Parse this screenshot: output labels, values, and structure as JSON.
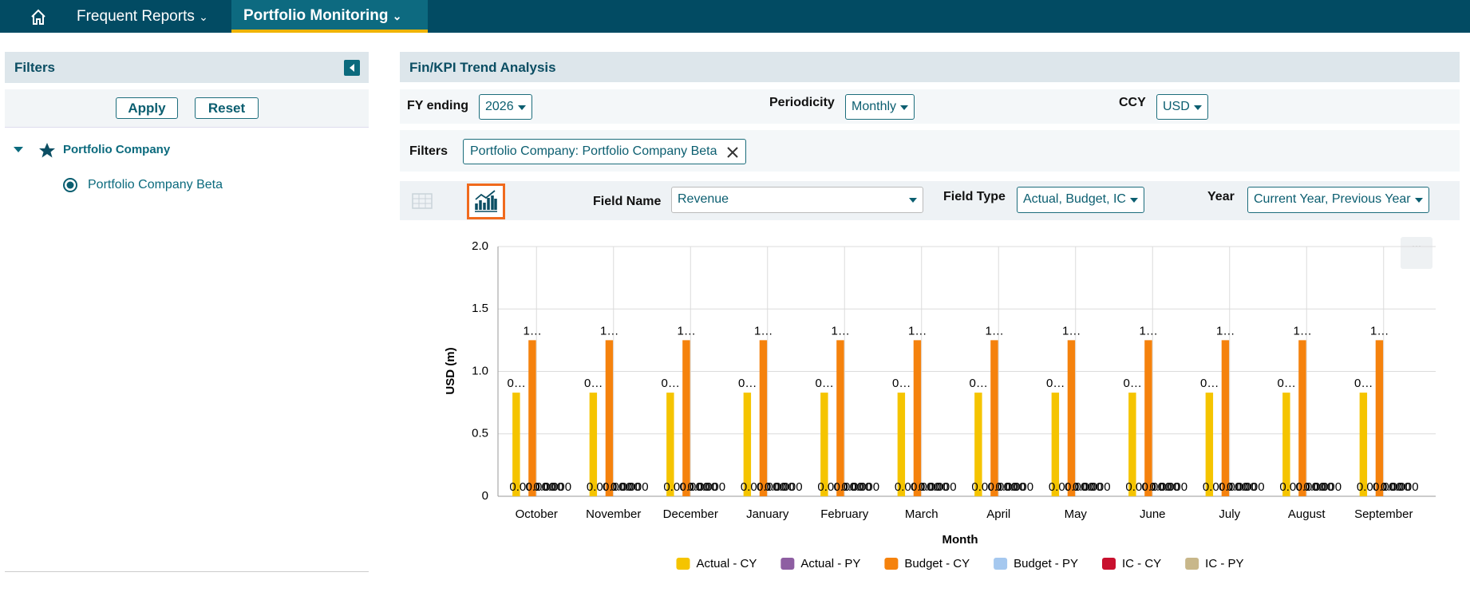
{
  "nav": {
    "items": [
      "Frequent Reports",
      "Portfolio Monitoring"
    ]
  },
  "filters_panel": {
    "title": "Filters",
    "buttons": [
      "Apply",
      "Reset"
    ],
    "tree": {
      "group": "Portfolio Company",
      "items": [
        "Portfolio Company Beta"
      ]
    }
  },
  "main": {
    "title": "Fin/KPI Trend Analysis",
    "controls": [
      {
        "label": "FY ending",
        "value": "2026"
      },
      {
        "label": "Periodicity",
        "value": "Monthly"
      },
      {
        "label": "CCY",
        "value": "USD"
      }
    ],
    "filters_label": "Filters",
    "filter_chip": "Portfolio Company: Portfolio Company Beta",
    "fields": [
      {
        "label": "Field Name",
        "value": "Revenue"
      },
      {
        "label": "Field Type",
        "value": "Actual, Budget, IC"
      },
      {
        "label": "Year",
        "value": "Current Year, Previous Year"
      }
    ]
  },
  "chart_data": {
    "type": "bar",
    "ylabel": "USD (m)",
    "xlabel": "Month",
    "categories": [
      "October",
      "November",
      "December",
      "January",
      "February",
      "March",
      "April",
      "May",
      "June",
      "July",
      "August",
      "September"
    ],
    "series": [
      {
        "name": "Actual - CY",
        "color": "#f5c400",
        "values": [
          0.83,
          0.83,
          0.83,
          0.83,
          0.83,
          0.83,
          0.83,
          0.83,
          0.83,
          0.83,
          0.83,
          0.83
        ],
        "value_labels": [
          "0…",
          "0…",
          "0…",
          "0…",
          "0…",
          "0…",
          "0…",
          "0…",
          "0…",
          "0…",
          "0…",
          "0…"
        ]
      },
      {
        "name": "Actual - PY",
        "color": "#8e5ea2",
        "values": [
          0,
          0,
          0,
          0,
          0,
          0,
          0,
          0,
          0,
          0,
          0,
          0
        ],
        "value_labels": [
          "0.000",
          "0.000",
          "0.000",
          "0.000",
          "0.000",
          "0.000",
          "0.000",
          "0.000",
          "0.000",
          "0.000",
          "0.000",
          "0.000"
        ]
      },
      {
        "name": "Budget - CY",
        "color": "#f5820d",
        "values": [
          1.25,
          1.25,
          1.25,
          1.25,
          1.25,
          1.25,
          1.25,
          1.25,
          1.25,
          1.25,
          1.25,
          1.25
        ],
        "value_labels": [
          "1…",
          "1…",
          "1…",
          "1…",
          "1…",
          "1…",
          "1…",
          "1…",
          "1…",
          "1…",
          "1…",
          "1…"
        ]
      },
      {
        "name": "Budget - PY",
        "color": "#a5c8ef",
        "values": [
          0,
          0,
          0,
          0,
          0,
          0,
          0,
          0,
          0,
          0,
          0,
          0
        ],
        "value_labels": [
          "0.000",
          "0.000",
          "0.000",
          "0.000",
          "0.000",
          "0.000",
          "0.000",
          "0.000",
          "0.000",
          "0.000",
          "0.000",
          "0.000"
        ]
      },
      {
        "name": "IC - CY",
        "color": "#c8102e",
        "values": [
          0,
          0,
          0,
          0,
          0,
          0,
          0,
          0,
          0,
          0,
          0,
          0
        ],
        "value_labels": [
          "0.000",
          "0.000",
          "0.000",
          "0.000",
          "0.000",
          "0.000",
          "0.000",
          "0.000",
          "0.000",
          "0.000",
          "0.000",
          "0.000"
        ]
      },
      {
        "name": "IC - PY",
        "color": "#c8b78a",
        "values": [
          0,
          0,
          0,
          0,
          0,
          0,
          0,
          0,
          0,
          0,
          0,
          0
        ],
        "value_labels": [
          "0.000",
          "0.000",
          "0.000",
          "0.000",
          "0.000",
          "0.000",
          "0.000",
          "0.000",
          "0.000",
          "0.000",
          "0.000",
          "0.000"
        ]
      }
    ],
    "ylim": [
      0,
      2
    ],
    "yticks": [
      0,
      0.5,
      {
        "value": 1,
        "label": "1.0"
      },
      1.5,
      {
        "value": 2,
        "label": "2.0"
      }
    ],
    "grid": true,
    "legend": "bottom"
  }
}
